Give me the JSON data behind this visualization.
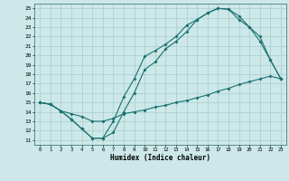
{
  "xlabel": "Humidex (Indice chaleur)",
  "xlim": [
    -0.5,
    23.5
  ],
  "ylim": [
    10.5,
    25.5
  ],
  "xticks": [
    0,
    1,
    2,
    3,
    4,
    5,
    6,
    7,
    8,
    9,
    10,
    11,
    12,
    13,
    14,
    15,
    16,
    17,
    18,
    19,
    20,
    21,
    22,
    23
  ],
  "yticks": [
    11,
    12,
    13,
    14,
    15,
    16,
    17,
    18,
    19,
    20,
    21,
    22,
    23,
    24,
    25
  ],
  "background_color": "#cce8e8",
  "grid_color": "#aacccc",
  "line_color": "#1a7070",
  "line1_x": [
    0,
    1,
    2,
    3,
    4,
    5,
    6,
    7,
    8,
    9,
    10,
    11,
    12,
    13,
    14,
    15,
    16,
    17,
    18,
    19,
    20,
    21,
    22,
    23
  ],
  "line1_y": [
    15.0,
    14.8,
    14.1,
    13.2,
    12.2,
    11.2,
    11.2,
    13.0,
    15.6,
    17.5,
    19.9,
    20.5,
    21.2,
    22.0,
    23.2,
    23.8,
    24.5,
    25.0,
    24.9,
    24.2,
    23.0,
    22.0,
    19.5,
    17.5
  ],
  "line2_x": [
    0,
    1,
    2,
    3,
    4,
    5,
    6,
    7,
    8,
    9,
    10,
    11,
    12,
    13,
    14,
    15,
    16,
    17,
    18,
    19,
    20,
    21,
    22,
    23
  ],
  "line2_y": [
    15.0,
    14.8,
    14.1,
    13.2,
    12.2,
    11.2,
    11.2,
    11.8,
    14.0,
    16.0,
    18.5,
    19.3,
    20.7,
    21.5,
    22.5,
    23.8,
    24.5,
    25.0,
    24.9,
    23.8,
    23.0,
    21.5,
    19.5,
    17.5
  ],
  "line3_x": [
    0,
    1,
    2,
    3,
    4,
    5,
    6,
    7,
    8,
    9,
    10,
    11,
    12,
    13,
    14,
    15,
    16,
    17,
    18,
    19,
    20,
    21,
    22,
    23
  ],
  "line3_y": [
    15.0,
    14.8,
    14.1,
    13.8,
    13.5,
    13.0,
    13.0,
    13.3,
    13.8,
    14.0,
    14.2,
    14.5,
    14.7,
    15.0,
    15.2,
    15.5,
    15.8,
    16.2,
    16.5,
    16.9,
    17.2,
    17.5,
    17.8,
    17.5
  ]
}
